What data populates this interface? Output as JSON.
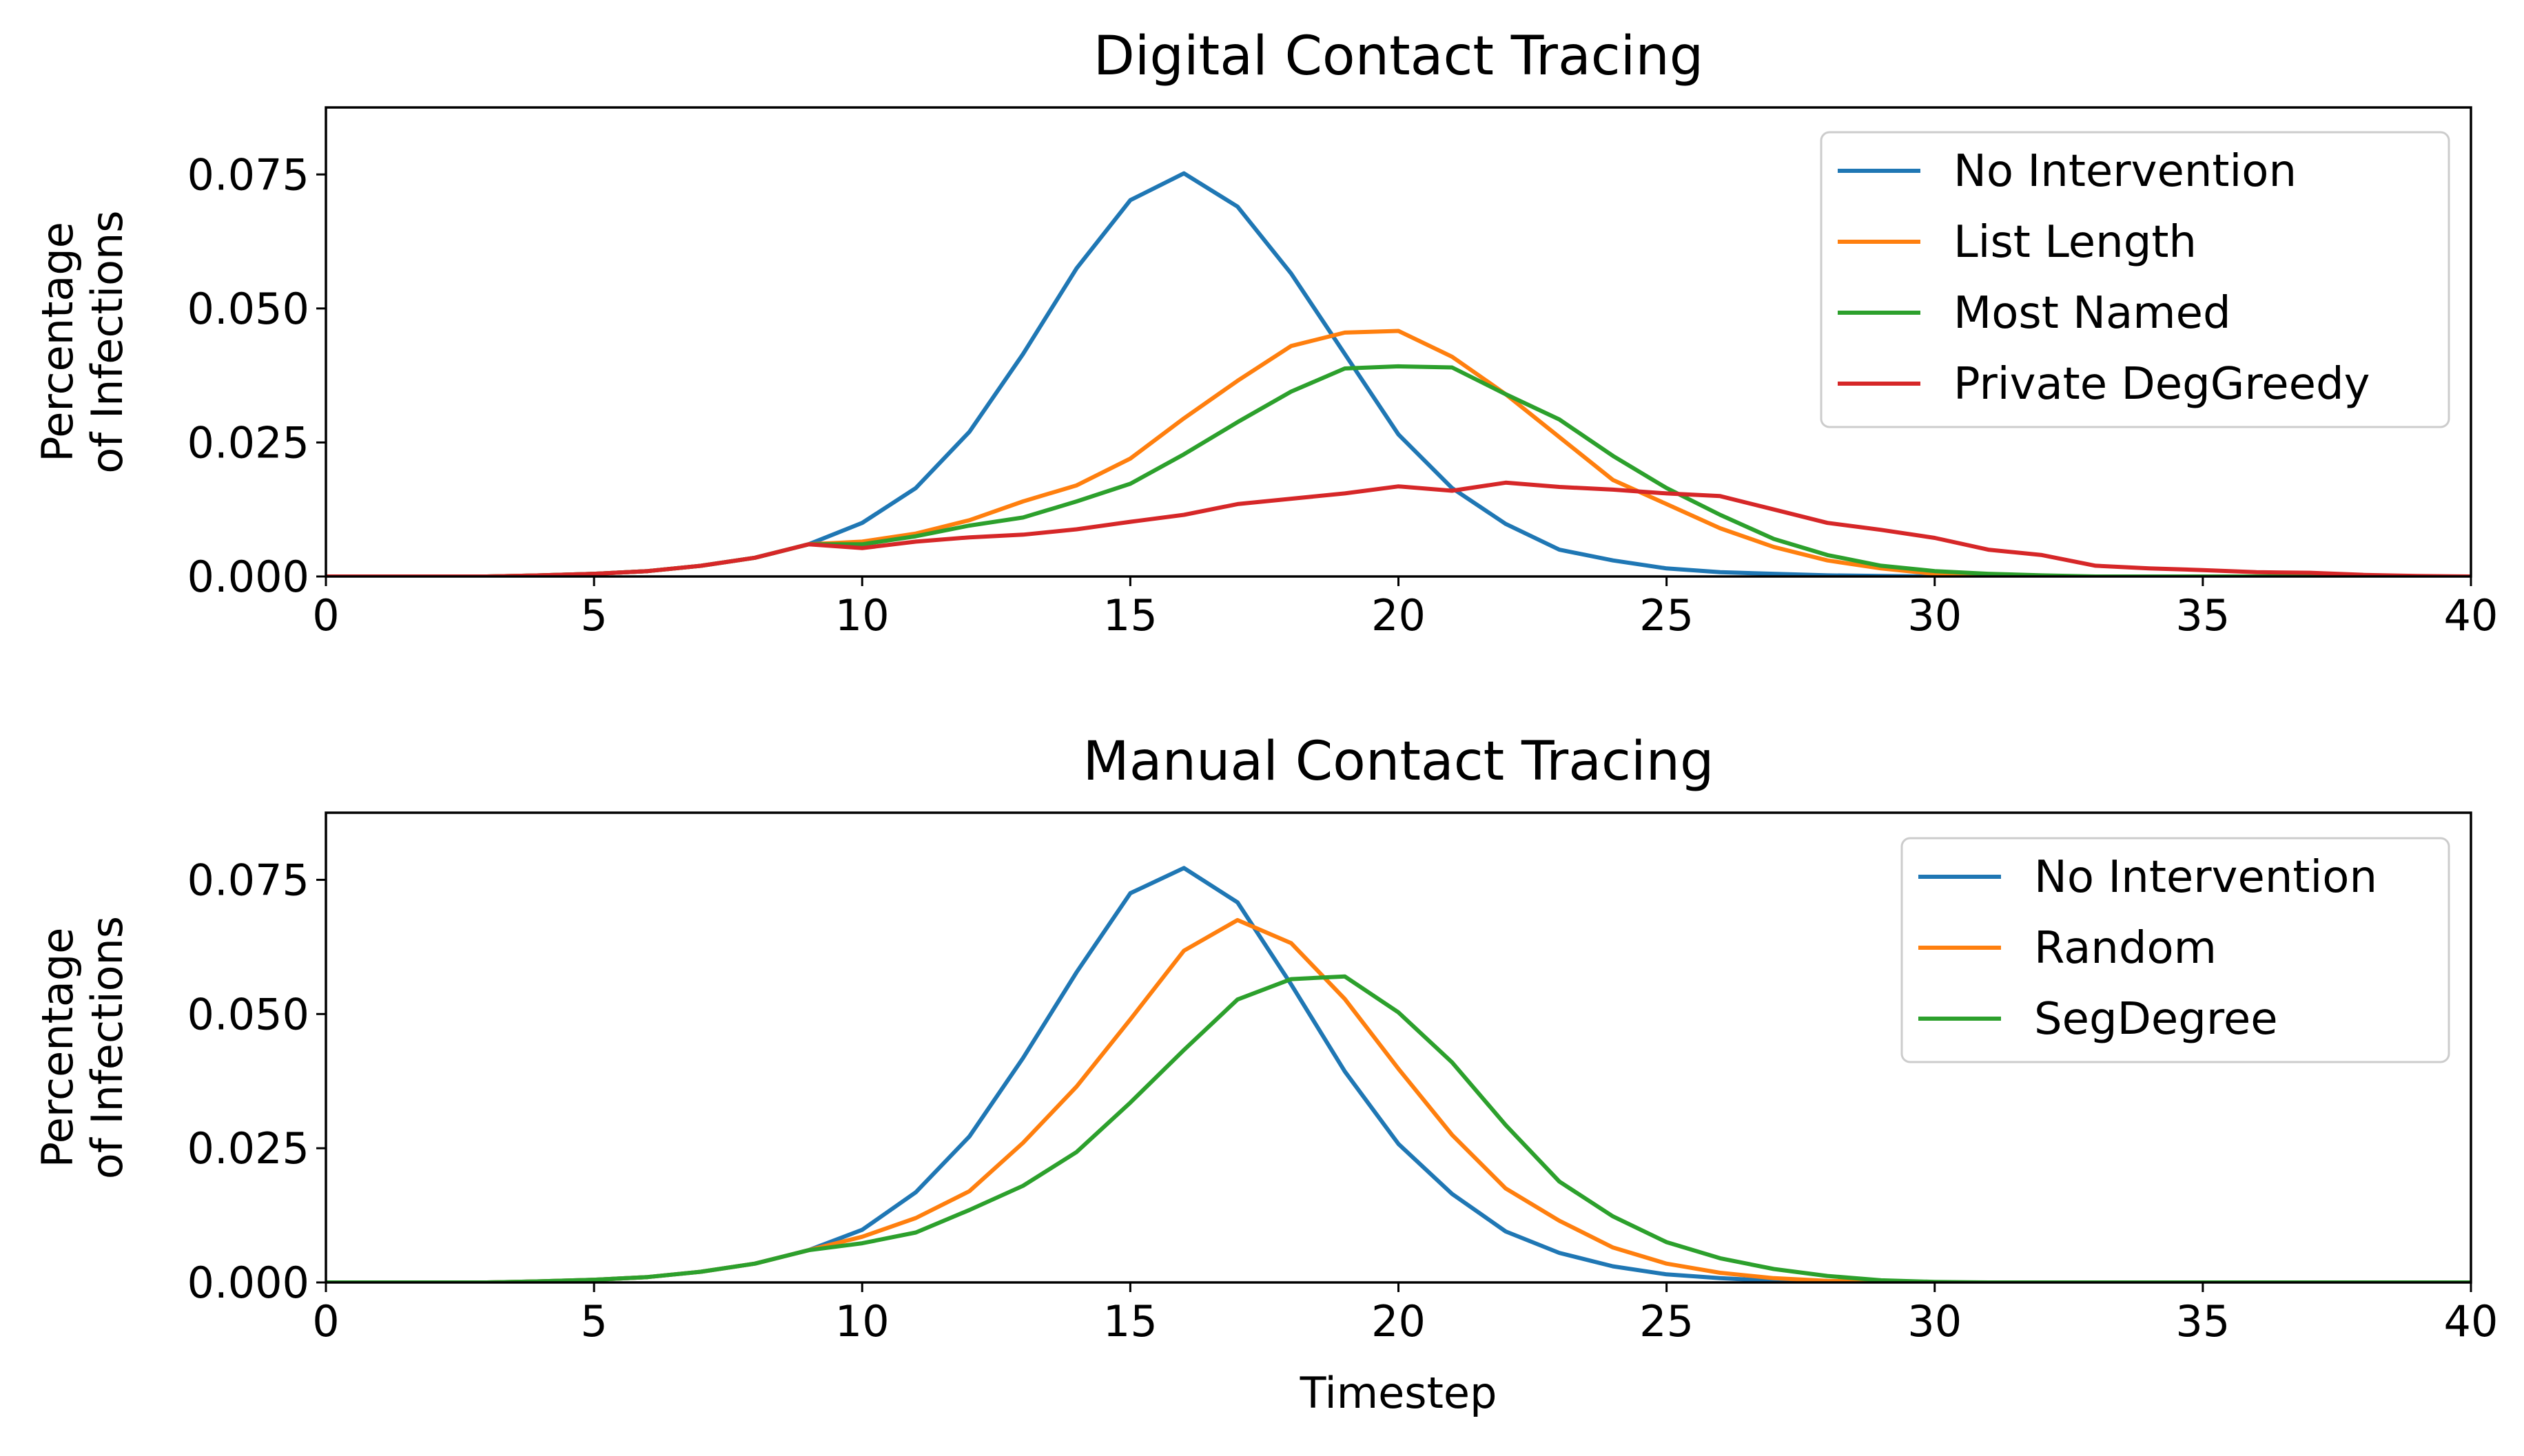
{
  "chart_data": [
    {
      "type": "line",
      "title": "Digital Contact Tracing",
      "xlabel": "",
      "ylabel": [
        "Percentage",
        "of Infections"
      ],
      "xlim": [
        0,
        40
      ],
      "ylim": [
        0,
        0.0875
      ],
      "xticks": [
        0,
        5,
        10,
        15,
        20,
        25,
        30,
        35,
        40
      ],
      "xtick_labels": [
        "0",
        "5",
        "10",
        "15",
        "20",
        "25",
        "30",
        "35",
        "40"
      ],
      "yticks": [
        0,
        0.025,
        0.05,
        0.075
      ],
      "ytick_labels": [
        "0.000",
        "0.025",
        "0.050",
        "0.075"
      ],
      "grid": false,
      "legend_position": "top-right",
      "x": [
        0,
        1,
        2,
        3,
        4,
        5,
        6,
        7,
        8,
        9,
        10,
        11,
        12,
        13,
        14,
        15,
        16,
        17,
        18,
        19,
        20,
        21,
        22,
        23,
        24,
        25,
        26,
        27,
        28,
        29,
        30,
        31,
        32,
        33,
        34,
        35,
        36,
        37,
        38,
        39,
        40
      ],
      "series": [
        {
          "name": "No Intervention",
          "color": "#1f77b4",
          "values": [
            0,
            0,
            0,
            0,
            0.0002,
            0.0005,
            0.001,
            0.002,
            0.0035,
            0.006,
            0.01,
            0.0165,
            0.027,
            0.0415,
            0.0575,
            0.0702,
            0.0752,
            0.069,
            0.0565,
            0.0415,
            0.0265,
            0.0165,
            0.0098,
            0.005,
            0.003,
            0.0015,
            0.0008,
            0.0005,
            0.0002,
            0.0001,
            0,
            0,
            0,
            0,
            0,
            0,
            0,
            0,
            0,
            0,
            0
          ]
        },
        {
          "name": "List Length",
          "color": "#ff7f0e",
          "values": [
            0,
            0,
            0,
            0,
            0.0002,
            0.0005,
            0.001,
            0.002,
            0.0035,
            0.006,
            0.0065,
            0.008,
            0.0105,
            0.014,
            0.017,
            0.022,
            0.0295,
            0.0365,
            0.043,
            0.0455,
            0.0458,
            0.041,
            0.034,
            0.026,
            0.018,
            0.0135,
            0.009,
            0.0055,
            0.003,
            0.0015,
            0.0005,
            0.0002,
            0,
            0,
            0,
            0,
            0,
            0,
            0,
            0,
            0
          ]
        },
        {
          "name": "Most Named",
          "color": "#2ca02c",
          "values": [
            0,
            0,
            0,
            0,
            0.0002,
            0.0005,
            0.001,
            0.002,
            0.0035,
            0.006,
            0.006,
            0.0075,
            0.0095,
            0.011,
            0.014,
            0.0173,
            0.0228,
            0.0288,
            0.0345,
            0.0388,
            0.0392,
            0.039,
            0.034,
            0.0293,
            0.0225,
            0.0165,
            0.0115,
            0.007,
            0.004,
            0.002,
            0.001,
            0.0005,
            0.0002,
            0,
            0,
            0,
            0,
            0,
            0,
            0,
            0
          ]
        },
        {
          "name": "Private DegGreedy",
          "color": "#d62728",
          "values": [
            0,
            0,
            0,
            0,
            0.0002,
            0.0005,
            0.001,
            0.002,
            0.0035,
            0.006,
            0.0053,
            0.0065,
            0.0073,
            0.0078,
            0.0088,
            0.0102,
            0.0115,
            0.0135,
            0.0145,
            0.0155,
            0.0168,
            0.016,
            0.0175,
            0.0167,
            0.0162,
            0.0155,
            0.015,
            0.0125,
            0.01,
            0.0087,
            0.0072,
            0.005,
            0.004,
            0.002,
            0.0015,
            0.0012,
            0.0008,
            0.0007,
            0.0003,
            0.0001,
            0
          ]
        }
      ]
    },
    {
      "type": "line",
      "title": "Manual Contact Tracing",
      "xlabel": "Timestep",
      "ylabel": [
        "Percentage",
        "of Infections"
      ],
      "xlim": [
        0,
        40
      ],
      "ylim": [
        0,
        0.0875
      ],
      "xticks": [
        0,
        5,
        10,
        15,
        20,
        25,
        30,
        35,
        40
      ],
      "xtick_labels": [
        "0",
        "5",
        "10",
        "15",
        "20",
        "25",
        "30",
        "35",
        "40"
      ],
      "yticks": [
        0,
        0.025,
        0.05,
        0.075
      ],
      "ytick_labels": [
        "0.000",
        "0.025",
        "0.050",
        "0.075"
      ],
      "grid": false,
      "legend_position": "top-right",
      "x": [
        0,
        1,
        2,
        3,
        4,
        5,
        6,
        7,
        8,
        9,
        10,
        11,
        12,
        13,
        14,
        15,
        16,
        17,
        18,
        19,
        20,
        21,
        22,
        23,
        24,
        25,
        26,
        27,
        28,
        29,
        30,
        31,
        32,
        33,
        34,
        35,
        36,
        37,
        38,
        39,
        40
      ],
      "series": [
        {
          "name": "No Intervention",
          "color": "#1f77b4",
          "values": [
            0,
            0,
            0,
            0,
            0.0002,
            0.0005,
            0.001,
            0.002,
            0.0035,
            0.006,
            0.0098,
            0.0168,
            0.0272,
            0.0418,
            0.0578,
            0.0725,
            0.0772,
            0.0708,
            0.0555,
            0.0393,
            0.0258,
            0.0165,
            0.0095,
            0.0055,
            0.003,
            0.0015,
            0.0008,
            0.0003,
            0.0001,
            0,
            0,
            0,
            0,
            0,
            0,
            0,
            0,
            0,
            0,
            0,
            0
          ]
        },
        {
          "name": "Random",
          "color": "#ff7f0e",
          "values": [
            0,
            0,
            0,
            0,
            0.0002,
            0.0005,
            0.001,
            0.002,
            0.0035,
            0.006,
            0.0085,
            0.012,
            0.017,
            0.026,
            0.0365,
            0.049,
            0.0618,
            0.0675,
            0.0632,
            0.0528,
            0.0398,
            0.0275,
            0.0175,
            0.0115,
            0.0065,
            0.0035,
            0.0018,
            0.0008,
            0.0003,
            0.0001,
            0,
            0,
            0,
            0,
            0,
            0,
            0,
            0,
            0,
            0,
            0
          ]
        },
        {
          "name": "SegDegree",
          "color": "#2ca02c",
          "values": [
            0,
            0,
            0,
            0,
            0.0002,
            0.0005,
            0.001,
            0.002,
            0.0035,
            0.006,
            0.0073,
            0.0093,
            0.0135,
            0.018,
            0.0243,
            0.0335,
            0.0433,
            0.0527,
            0.0565,
            0.057,
            0.0503,
            0.041,
            0.0293,
            0.0188,
            0.0123,
            0.0075,
            0.0045,
            0.0025,
            0.0012,
            0.0004,
            0.0001,
            0,
            0,
            0,
            0,
            0,
            0,
            0,
            0,
            0,
            0
          ]
        }
      ]
    }
  ]
}
